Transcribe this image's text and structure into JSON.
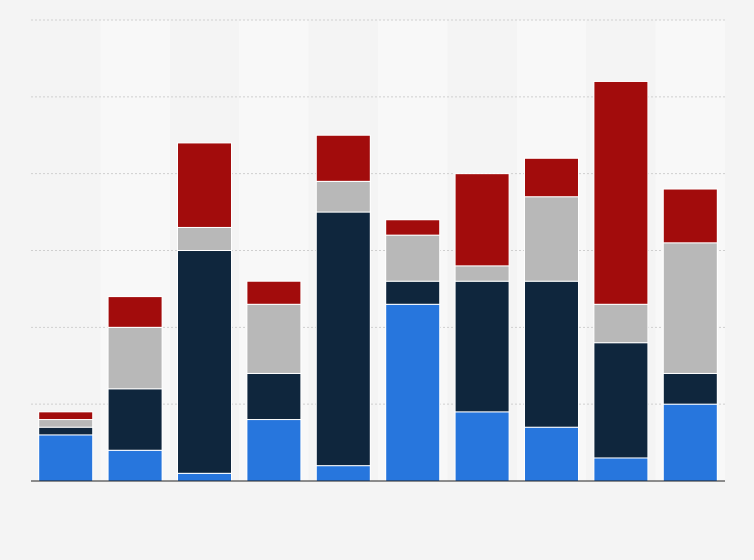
{
  "chart_data": {
    "type": "bar",
    "stacked": true,
    "categories": [
      "",
      "",
      "",
      "",
      "",
      "",
      "",
      "",
      "",
      ""
    ],
    "series": [
      {
        "color": "#2776dd",
        "values": [
          0.6,
          0.4,
          0.1,
          0.8,
          0.2,
          2.3,
          0.9,
          0.7,
          0.3,
          1.0
        ]
      },
      {
        "color": "#0f263d",
        "values": [
          0.1,
          0.8,
          2.9,
          0.6,
          3.3,
          0.3,
          1.7,
          1.9,
          1.5,
          0.4
        ]
      },
      {
        "color": "#b8b8b8",
        "values": [
          0.1,
          0.8,
          0.3,
          0.9,
          0.4,
          0.6,
          0.2,
          1.1,
          0.5,
          1.7
        ]
      },
      {
        "color": "#a20c0c",
        "values": [
          0.1,
          0.4,
          1.1,
          0.3,
          0.6,
          0.2,
          1.2,
          0.5,
          2.9,
          0.7
        ]
      }
    ],
    "ylim": [
      0,
      6
    ],
    "grid": true,
    "legend": "none"
  }
}
